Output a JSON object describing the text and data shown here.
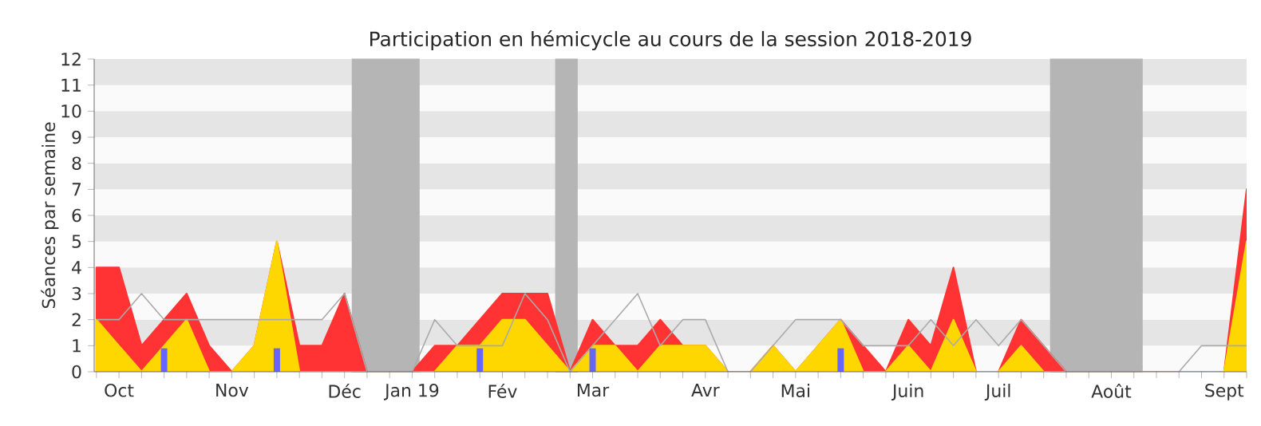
{
  "chart_data": {
    "type": "area",
    "title": "Participation en hémicycle au cours de la session 2018-2019",
    "ylabel": "Séances par semaine",
    "categories": [
      null,
      "Oct",
      null,
      null,
      null,
      null,
      "Nov",
      null,
      null,
      null,
      null,
      "Déc",
      null,
      null,
      "Jan 19",
      null,
      null,
      null,
      "Fév",
      null,
      null,
      null,
      "Mar",
      null,
      null,
      null,
      null,
      "Avr",
      null,
      null,
      null,
      "Mai",
      null,
      null,
      null,
      null,
      "Juin",
      null,
      null,
      null,
      "Juil",
      null,
      null,
      null,
      null,
      "Août",
      null,
      null,
      null,
      null,
      "Sept",
      null
    ],
    "series": [
      {
        "color": "#ff3333",
        "values": [
          4,
          4,
          1,
          2,
          3,
          1,
          0,
          1,
          5,
          1,
          1,
          3,
          0,
          0,
          0,
          1,
          1,
          2,
          3,
          3,
          3,
          0,
          2,
          1,
          1,
          2,
          1,
          1,
          0,
          0,
          1,
          0,
          1,
          2,
          1,
          0,
          2,
          1,
          4,
          0,
          0,
          2,
          1,
          0,
          0,
          0,
          0,
          0,
          0,
          0,
          0,
          7
        ]
      },
      {
        "color": "#ffd700",
        "values": [
          2,
          1,
          0,
          1,
          2,
          0,
          0,
          1,
          5,
          0,
          0,
          0,
          0,
          0,
          0,
          0,
          1,
          1,
          2,
          2,
          1,
          0,
          1,
          1,
          0,
          1,
          1,
          1,
          0,
          0,
          1,
          0,
          1,
          2,
          0,
          0,
          1,
          0,
          2,
          0,
          0,
          1,
          0,
          0,
          0,
          0,
          0,
          0,
          0,
          0,
          0,
          5
        ]
      },
      {
        "type": "line",
        "color": "#aaaaaa",
        "values": [
          2,
          2,
          3,
          2,
          2,
          2,
          2,
          2,
          2,
          2,
          2,
          3,
          0,
          0,
          0,
          2,
          1,
          1,
          1,
          3,
          2,
          0,
          1,
          2,
          3,
          1,
          2,
          2,
          0,
          0,
          1,
          2,
          2,
          2,
          1,
          1,
          1,
          2,
          1,
          2,
          1,
          2,
          1,
          0,
          0,
          0,
          0,
          0,
          0,
          1,
          1,
          1
        ]
      },
      {
        "type": "bar",
        "color": "#6666ff",
        "values": [
          null,
          null,
          null,
          0.9,
          null,
          null,
          null,
          null,
          0.9,
          null,
          null,
          null,
          null,
          null,
          null,
          null,
          null,
          0.9,
          null,
          null,
          null,
          null,
          0.9,
          null,
          null,
          null,
          null,
          null,
          null,
          null,
          null,
          null,
          null,
          0.9,
          null,
          null,
          null,
          null,
          null,
          null,
          null,
          null,
          null,
          null,
          null,
          null,
          null,
          null,
          null,
          null,
          null,
          null
        ]
      }
    ],
    "ylim": [
      0,
      12
    ],
    "yticks": [
      0,
      1,
      2,
      3,
      4,
      5,
      6,
      7,
      8,
      9,
      10,
      11,
      12
    ]
  }
}
